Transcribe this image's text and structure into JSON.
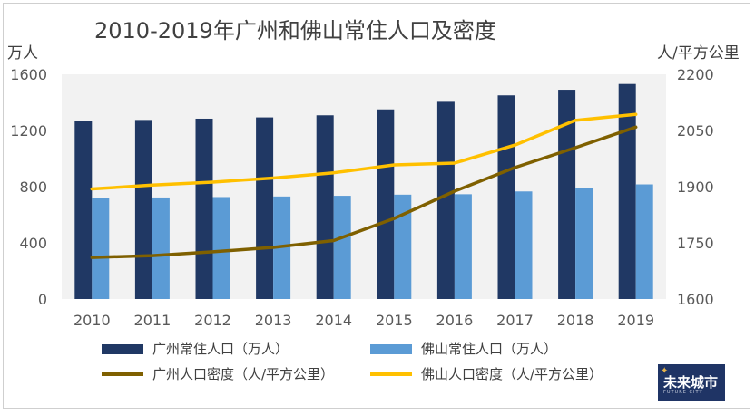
{
  "chart_data": {
    "type": "bar+line",
    "title": "2010-2019年广州和佛山常住人口及密度",
    "y_left_unit": "万人",
    "y_right_unit": "人/平方公里",
    "categories": [
      "2010",
      "2011",
      "2012",
      "2013",
      "2014",
      "2015",
      "2016",
      "2017",
      "2018",
      "2019"
    ],
    "y_left_ticks": [
      "0",
      "400",
      "800",
      "1200",
      "1600"
    ],
    "y_right_ticks": [
      "1600",
      "1750",
      "1900",
      "2050",
      "2200"
    ],
    "ylim_left": [
      0,
      1600
    ],
    "ylim_right": [
      1600,
      2200
    ],
    "series": [
      {
        "name": "广州常住人口（万人）",
        "type": "bar",
        "axis": "left",
        "color": "#203864",
        "values": [
          1270,
          1275,
          1284,
          1293,
          1308,
          1350,
          1404,
          1450,
          1490,
          1531
        ]
      },
      {
        "name": "佛山常住人口（万人）",
        "type": "bar",
        "axis": "left",
        "color": "#5b9bd5",
        "values": [
          719,
          723,
          726,
          730,
          735,
          743,
          746,
          766,
          791,
          816
        ]
      },
      {
        "name": "广州人口密度（人/平方公里）",
        "type": "line",
        "axis": "right",
        "color": "#7f6000",
        "values": [
          1711,
          1716,
          1726,
          1738,
          1756,
          1815,
          1888,
          1951,
          2004,
          2059
        ]
      },
      {
        "name": "佛山人口密度（人/平方公里）",
        "type": "line",
        "axis": "right",
        "color": "#ffc000",
        "values": [
          1894,
          1904,
          1912,
          1923,
          1937,
          1958,
          1963,
          2011,
          2077,
          2093
        ]
      }
    ],
    "legend_position": "bottom",
    "grid": false
  },
  "logo": {
    "text": "未来城市",
    "subtext": "FUTURE CITY"
  }
}
